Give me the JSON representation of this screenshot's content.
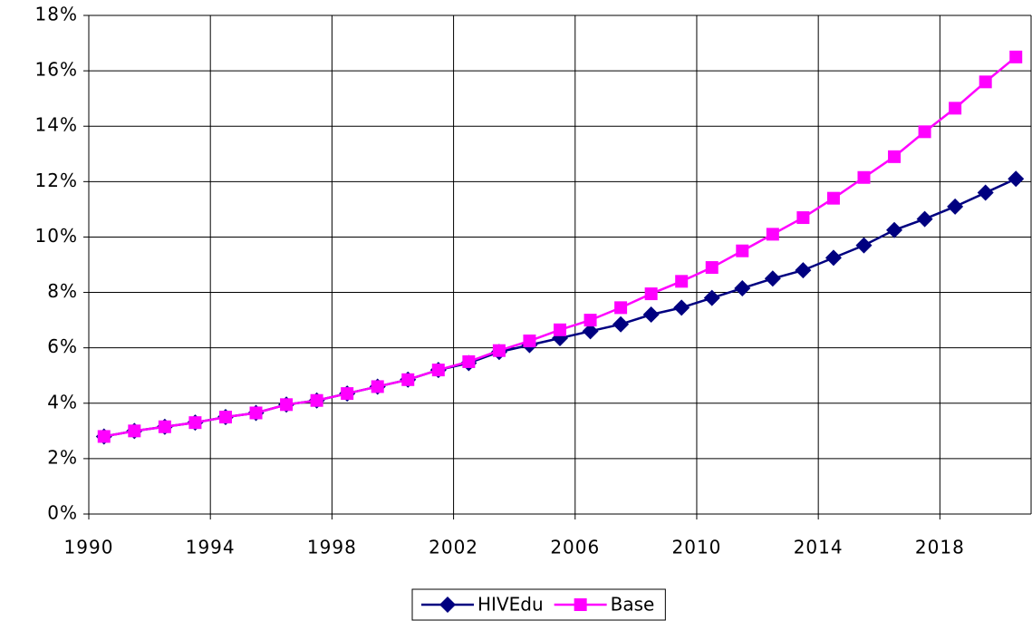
{
  "chart_data": {
    "type": "line",
    "categories": [
      "1990",
      null,
      null,
      null,
      "1994",
      null,
      null,
      null,
      "1998",
      null,
      null,
      null,
      "2002",
      null,
      null,
      null,
      "2006",
      null,
      null,
      null,
      "2010",
      null,
      null,
      null,
      "2014",
      null,
      null,
      null,
      "2018",
      null,
      null
    ],
    "series": [
      {
        "name": "HIVEdu",
        "color": "#000080",
        "marker": "diamond",
        "values": [
          2.8,
          3.0,
          3.15,
          3.3,
          3.5,
          3.65,
          3.95,
          4.1,
          4.35,
          4.6,
          4.85,
          5.2,
          5.45,
          5.85,
          6.1,
          6.35,
          6.6,
          6.85,
          7.2,
          7.45,
          7.8,
          8.15,
          8.5,
          8.8,
          9.25,
          9.7,
          10.25,
          10.65,
          11.1,
          11.6,
          12.1
        ]
      },
      {
        "name": "Base",
        "color": "#ff00ff",
        "marker": "square",
        "values": [
          2.8,
          3.0,
          3.15,
          3.3,
          3.5,
          3.65,
          3.95,
          4.1,
          4.35,
          4.6,
          4.85,
          5.2,
          5.5,
          5.9,
          6.25,
          6.65,
          7.0,
          7.45,
          7.95,
          8.4,
          8.9,
          9.5,
          10.1,
          10.7,
          11.4,
          12.15,
          12.9,
          13.8,
          14.65,
          15.6,
          16.5
        ]
      }
    ],
    "ylim": [
      0,
      18
    ],
    "yticks": [
      {
        "value": 0,
        "label": "0%"
      },
      {
        "value": 2,
        "label": "2%"
      },
      {
        "value": 4,
        "label": "4%"
      },
      {
        "value": 6,
        "label": "6%"
      },
      {
        "value": 8,
        "label": "8%"
      },
      {
        "value": 10,
        "label": "10%"
      },
      {
        "value": 12,
        "label": "12%"
      },
      {
        "value": 14,
        "label": "14%"
      },
      {
        "value": 16,
        "label": "16%"
      },
      {
        "value": 18,
        "label": "18%"
      }
    ],
    "grid": true,
    "legend": "bottom"
  }
}
